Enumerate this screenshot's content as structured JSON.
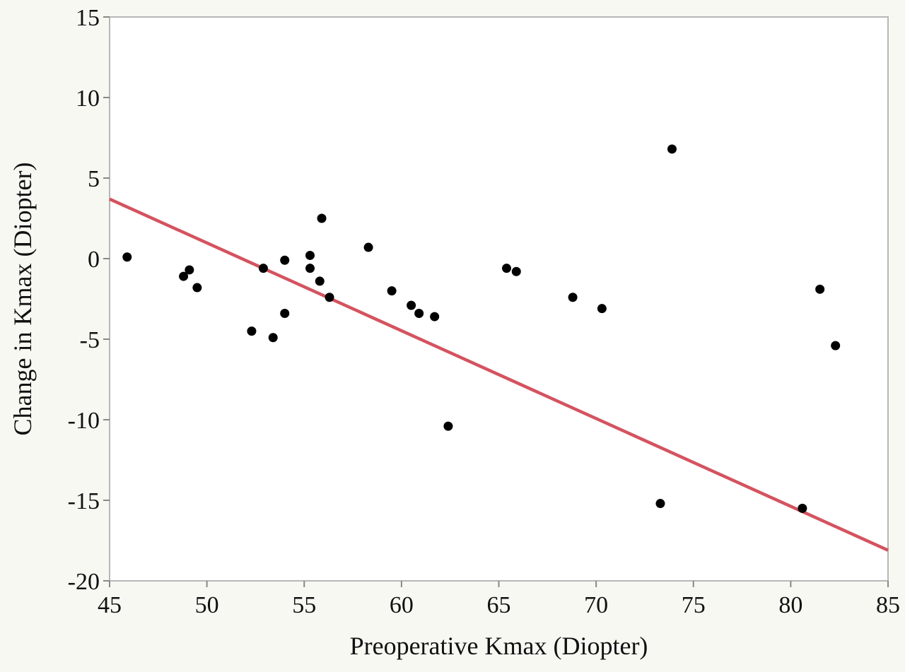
{
  "chart_data": {
    "type": "scatter",
    "title": "",
    "xlabel": "Preoperative Kmax (Diopter)",
    "ylabel": "Change in Kmax (Diopter)",
    "xlim": [
      45,
      85
    ],
    "ylim": [
      -20,
      15
    ],
    "x_ticks": [
      "45",
      "50",
      "55",
      "60",
      "65",
      "70",
      "75",
      "80",
      "85"
    ],
    "y_ticks": [
      "15",
      "10",
      "5",
      "0",
      "-5",
      "-10",
      "-15",
      "-20"
    ],
    "grid": false,
    "points": [
      {
        "x": 45.9,
        "y": 0.1
      },
      {
        "x": 48.8,
        "y": -1.1
      },
      {
        "x": 49.1,
        "y": -0.7
      },
      {
        "x": 49.5,
        "y": -1.8
      },
      {
        "x": 52.3,
        "y": -4.5
      },
      {
        "x": 52.9,
        "y": -0.6
      },
      {
        "x": 53.4,
        "y": -4.9
      },
      {
        "x": 54.0,
        "y": -0.1
      },
      {
        "x": 54.0,
        "y": -3.4
      },
      {
        "x": 55.3,
        "y": 0.2
      },
      {
        "x": 55.3,
        "y": -0.6
      },
      {
        "x": 55.8,
        "y": -1.4
      },
      {
        "x": 55.9,
        "y": 2.5
      },
      {
        "x": 56.3,
        "y": -2.4
      },
      {
        "x": 58.3,
        "y": 0.7
      },
      {
        "x": 59.5,
        "y": -2.0
      },
      {
        "x": 60.5,
        "y": -2.9
      },
      {
        "x": 60.9,
        "y": -3.4
      },
      {
        "x": 61.7,
        "y": -3.6
      },
      {
        "x": 62.4,
        "y": -10.4
      },
      {
        "x": 65.4,
        "y": -0.6
      },
      {
        "x": 65.9,
        "y": -0.8
      },
      {
        "x": 68.8,
        "y": -2.4
      },
      {
        "x": 70.3,
        "y": -3.1
      },
      {
        "x": 73.3,
        "y": -15.2
      },
      {
        "x": 73.9,
        "y": 6.8
      },
      {
        "x": 80.6,
        "y": -15.5
      },
      {
        "x": 81.5,
        "y": -1.9
      },
      {
        "x": 82.3,
        "y": -5.4
      }
    ],
    "fit_line": {
      "x": [
        45,
        85
      ],
      "y": [
        3.7,
        -18.1
      ],
      "color": "#d4535f"
    },
    "point_color": "#000000",
    "frame_color": "#b7b7b7",
    "background": "#ffffff"
  }
}
